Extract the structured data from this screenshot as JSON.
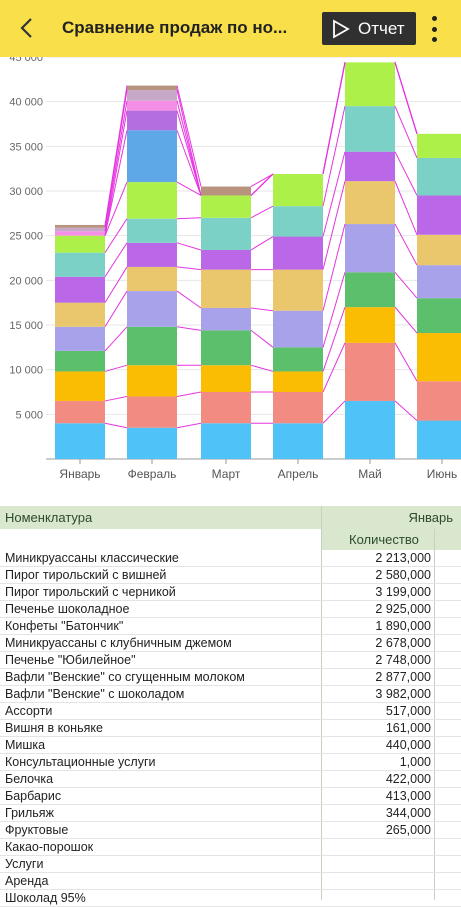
{
  "appbar": {
    "title": "Сравнение продаж по но...",
    "report_label": "Отчет",
    "back_icon": "arrow-left-icon",
    "menu_icon": "more-vertical-icon"
  },
  "chart_data": {
    "type": "bar",
    "stacked": true,
    "categories": [
      "Январь",
      "Февраль",
      "Март",
      "Апрель",
      "Май",
      "Июнь"
    ],
    "y_ticks": [
      "5 000",
      "10 000",
      "15 000",
      "20 000",
      "25 000",
      "30 000",
      "35 000",
      "40 000",
      "45 000"
    ],
    "ylim": [
      0,
      45000
    ],
    "grid": "horizontal",
    "colors": [
      "#4fc3f7",
      "#f28b82",
      "#fbbc04",
      "#5bbf6b",
      "#a7a2ea",
      "#eac66d",
      "#ba68e8",
      "#7bd1c6",
      "#aef04a",
      "#5fa8e8",
      "#b56ee0",
      "#f58fe6",
      "#c8a8c8",
      "#b8937e"
    ],
    "series": [
      {
        "values": [
          4000,
          3500,
          4000,
          4000,
          6500,
          4300
        ]
      },
      {
        "values": [
          2500,
          3500,
          3500,
          3500,
          6500,
          4400
        ]
      },
      {
        "values": [
          3300,
          3500,
          3000,
          2300,
          4000,
          5400
        ]
      },
      {
        "values": [
          2300,
          4300,
          3900,
          2700,
          3900,
          3900
        ]
      },
      {
        "values": [
          2700,
          4000,
          2500,
          4100,
          5400,
          3700
        ]
      },
      {
        "values": [
          2700,
          2700,
          4300,
          4600,
          4800,
          3400
        ]
      },
      {
        "values": [
          2900,
          2700,
          2200,
          3700,
          3300,
          4400
        ]
      },
      {
        "values": [
          2700,
          2700,
          3600,
          3400,
          5100,
          4200
        ]
      },
      {
        "values": [
          1900,
          4100,
          2500,
          3600,
          4900,
          2700
        ]
      },
      {
        "values": [
          0,
          5800,
          0,
          0,
          0,
          0
        ]
      },
      {
        "values": [
          0,
          2200,
          0,
          0,
          0,
          0
        ]
      },
      {
        "values": [
          500,
          1100,
          0,
          0,
          0,
          0
        ]
      },
      {
        "values": [
          400,
          1200,
          0,
          0,
          0,
          0
        ]
      },
      {
        "values": [
          300,
          500,
          1000,
          0,
          0,
          0
        ]
      }
    ]
  },
  "table": {
    "col_name": "Номенклатура",
    "col_month": "Январь",
    "col_qty": "Количество",
    "rows": [
      {
        "name": "Миникруассаны классические",
        "qty": "2 213,000"
      },
      {
        "name": "Пирог тирольский с вишней",
        "qty": "2 580,000"
      },
      {
        "name": "Пирог тирольский с черникой",
        "qty": "3 199,000"
      },
      {
        "name": "Печенье шоколадное",
        "qty": "2 925,000"
      },
      {
        "name": "Конфеты \"Батончик\"",
        "qty": "1 890,000"
      },
      {
        "name": "Миникруассаны с клубничным джемом",
        "qty": "2 678,000"
      },
      {
        "name": "Печенье \"Юбилейное\"",
        "qty": "2 748,000"
      },
      {
        "name": "Вафли \"Венские\" со сгущенным молоком",
        "qty": "2 877,000"
      },
      {
        "name": "Вафли \"Венские\" с шоколадом",
        "qty": "3 982,000"
      },
      {
        "name": "Ассорти",
        "qty": "517,000"
      },
      {
        "name": "Вишня в коньяке",
        "qty": "161,000"
      },
      {
        "name": "Мишка",
        "qty": "440,000"
      },
      {
        "name": "Консультационные услуги",
        "qty": "1,000"
      },
      {
        "name": "Белочка",
        "qty": "422,000"
      },
      {
        "name": "Барбарис",
        "qty": "413,000"
      },
      {
        "name": "Грильяж",
        "qty": "344,000"
      },
      {
        "name": "Фруктовые",
        "qty": "265,000"
      },
      {
        "name": "Какао-порошок",
        "qty": ""
      },
      {
        "name": "Услуги",
        "qty": ""
      },
      {
        "name": "Аренда",
        "qty": ""
      },
      {
        "name": "Шоколад 95%",
        "qty": ""
      }
    ]
  }
}
